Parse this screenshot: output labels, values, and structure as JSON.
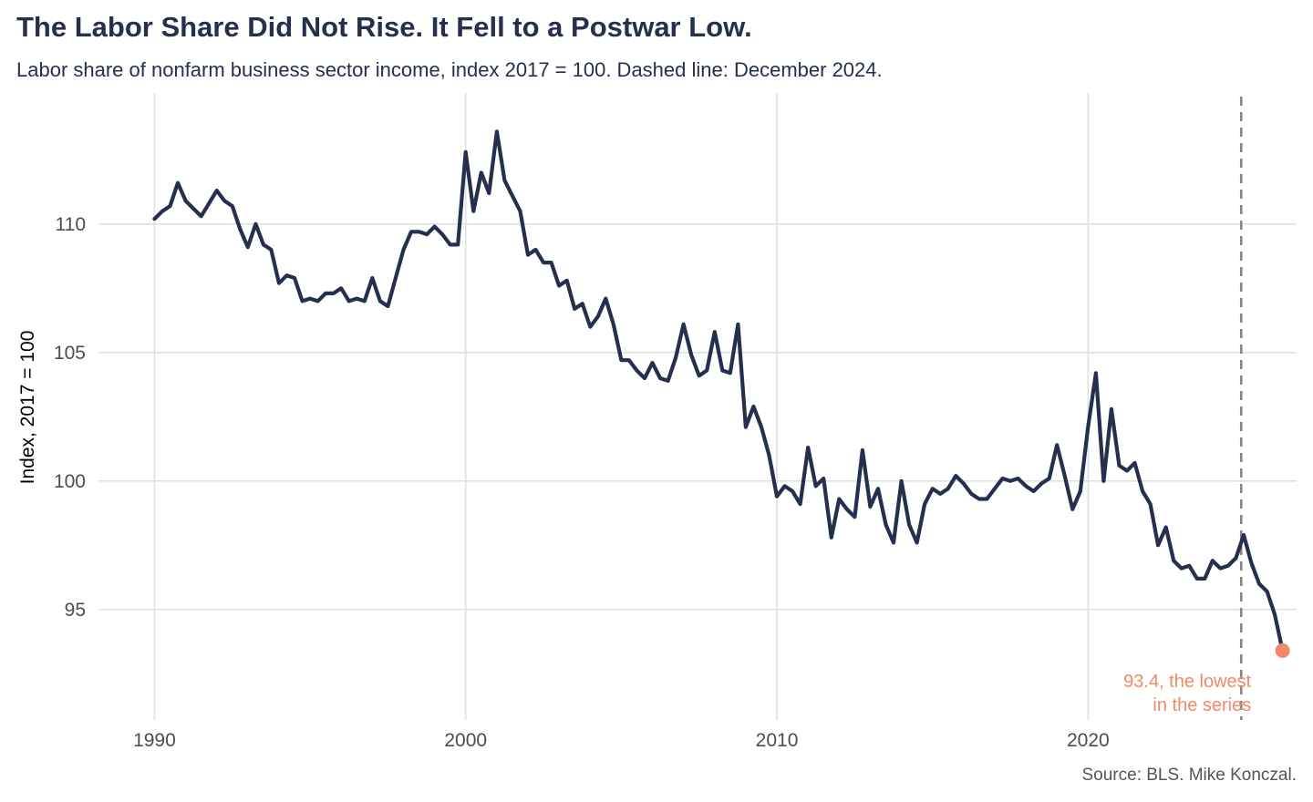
{
  "chart_data": {
    "type": "line",
    "title": "The Labor Share Did Not Rise. It Fell to a Postwar Low.",
    "subtitle": "Labor share of nonfarm business sector income, index 2017 = 100. Dashed line: December 2024.",
    "caption": "Source: BLS. Mike Konczal.",
    "xlabel": "",
    "ylabel": "Index, 2017 = 100",
    "xlim": [
      1988.2,
      2026.7
    ],
    "ylim": [
      90.7,
      115.1
    ],
    "x_ticks": [
      {
        "value": 1990,
        "label": "1990"
      },
      {
        "value": 2000,
        "label": "2000"
      },
      {
        "value": 2010,
        "label": "2010"
      },
      {
        "value": 2020,
        "label": "2020"
      }
    ],
    "y_ticks": [
      {
        "value": 95,
        "label": "95"
      },
      {
        "value": 100,
        "label": "100"
      },
      {
        "value": 105,
        "label": "105"
      },
      {
        "value": 110,
        "label": "110"
      }
    ],
    "grid": true,
    "line_color": "#262f4e",
    "reference_line": {
      "x": 2024.92,
      "color": "#8a8580",
      "style": "dashed"
    },
    "highlight": {
      "x": 2026.25,
      "y": 93.4,
      "color": "#f4876a",
      "label_lines": [
        "93.4, the lowest",
        "in the series"
      ]
    },
    "series": [
      {
        "x": [
          1990.0,
          1990.25,
          1990.5,
          1990.75,
          1991.0,
          1991.25,
          1991.5,
          1991.75,
          1992.0,
          1992.25,
          1992.5,
          1992.75,
          1993.0,
          1993.25,
          1993.5,
          1993.75,
          1994.0,
          1994.25,
          1994.5,
          1994.75,
          1995.0,
          1995.25,
          1995.5,
          1995.75,
          1996.0,
          1996.25,
          1996.5,
          1996.75,
          1997.0,
          1997.25,
          1997.5,
          1997.75,
          1998.0,
          1998.25,
          1998.5,
          1998.75,
          1999.0,
          1999.25,
          1999.5,
          1999.75,
          2000.0,
          2000.25,
          2000.5,
          2000.75,
          2001.0,
          2001.25,
          2001.5,
          2001.75,
          2002.0,
          2002.25,
          2002.5,
          2002.75,
          2003.0,
          2003.25,
          2003.5,
          2003.75,
          2004.0,
          2004.25,
          2004.5,
          2004.75,
          2005.0,
          2005.25,
          2005.5,
          2005.75,
          2006.0,
          2006.25,
          2006.5,
          2006.75,
          2007.0,
          2007.25,
          2007.5,
          2007.75,
          2008.0,
          2008.25,
          2008.5,
          2008.75,
          2009.0,
          2009.25,
          2009.5,
          2009.75,
          2010.0,
          2010.25,
          2010.5,
          2010.75,
          2011.0,
          2011.25,
          2011.5,
          2011.75,
          2012.0,
          2012.25,
          2012.5,
          2012.75,
          2013.0,
          2013.25,
          2013.5,
          2013.75,
          2014.0,
          2014.25,
          2014.5,
          2014.75,
          2015.0,
          2015.25,
          2015.5,
          2015.75,
          2016.0,
          2016.25,
          2016.5,
          2016.75,
          2017.0,
          2017.25,
          2017.5,
          2017.75,
          2018.0,
          2018.25,
          2018.5,
          2018.75,
          2019.0,
          2019.25,
          2019.5,
          2019.75,
          2020.0,
          2020.25,
          2020.5,
          2020.75,
          2021.0,
          2021.25,
          2021.5,
          2021.75,
          2022.0,
          2022.25,
          2022.5,
          2022.75,
          2023.0,
          2023.25,
          2023.5,
          2023.75,
          2024.0,
          2024.25,
          2024.5,
          2024.75,
          2025.0,
          2025.25,
          2025.5,
          2025.75,
          2026.0,
          2026.25
        ],
        "y": [
          110.2,
          110.5,
          110.7,
          111.6,
          110.9,
          110.6,
          110.3,
          110.8,
          111.3,
          110.9,
          110.7,
          109.8,
          109.1,
          110.0,
          109.2,
          109.0,
          107.7,
          108.0,
          107.9,
          107.0,
          107.1,
          107.0,
          107.3,
          107.3,
          107.5,
          107.0,
          107.1,
          107.0,
          107.9,
          107.0,
          106.8,
          107.9,
          109.0,
          109.7,
          109.7,
          109.6,
          109.9,
          109.6,
          109.2,
          109.2,
          112.8,
          110.5,
          112.0,
          111.2,
          113.6,
          111.7,
          111.1,
          110.5,
          108.8,
          109.0,
          108.5,
          108.5,
          107.6,
          107.8,
          106.7,
          106.9,
          106.0,
          106.4,
          107.1,
          106.1,
          104.7,
          104.7,
          104.3,
          104.0,
          104.6,
          104.0,
          103.9,
          104.8,
          106.1,
          104.9,
          104.1,
          104.3,
          105.8,
          104.3,
          104.2,
          106.1,
          102.1,
          102.9,
          102.1,
          101.0,
          99.4,
          99.8,
          99.6,
          99.1,
          101.3,
          99.8,
          100.1,
          97.8,
          99.3,
          98.9,
          98.6,
          101.2,
          99.0,
          99.7,
          98.3,
          97.6,
          100.0,
          98.3,
          97.6,
          99.1,
          99.7,
          99.5,
          99.7,
          100.2,
          99.9,
          99.5,
          99.3,
          99.3,
          99.7,
          100.1,
          100.0,
          100.1,
          99.8,
          99.6,
          99.9,
          100.1,
          101.4,
          100.2,
          98.9,
          99.6,
          102.1,
          104.2,
          100.0,
          102.8,
          100.6,
          100.4,
          100.7,
          99.6,
          99.1,
          97.5,
          98.2,
          96.9,
          96.6,
          96.7,
          96.2,
          96.2,
          96.9,
          96.6,
          96.7,
          97.0,
          97.9,
          96.8,
          96.0,
          95.7,
          94.8,
          93.4
        ]
      }
    ]
  }
}
